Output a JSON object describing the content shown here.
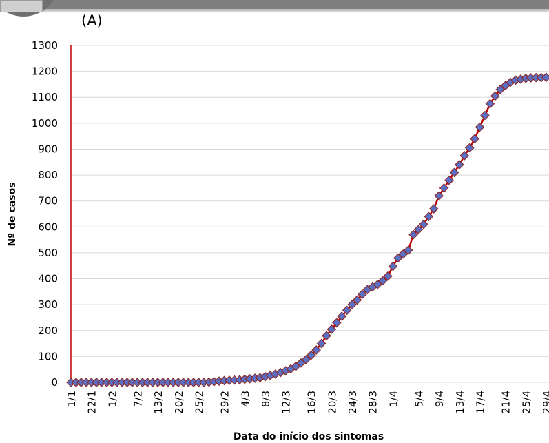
{
  "panel_label": "(A)",
  "chart_data": {
    "type": "line",
    "title": "",
    "xlabel": "Data do início dos sintomas",
    "ylabel": "Nº de casos",
    "ylim": [
      0,
      1300
    ],
    "yticks": [
      0,
      100,
      200,
      300,
      400,
      500,
      600,
      700,
      800,
      900,
      1000,
      1100,
      1200,
      1300
    ],
    "xticks": [
      "1/1",
      "22/1",
      "1/2",
      "7/2",
      "13/2",
      "20/2",
      "25/2",
      "29/2",
      "4/3",
      "8/3",
      "12/3",
      "16/3",
      "20/3",
      "24/3",
      "28/3",
      "1/4",
      "5/4",
      "9/4",
      "13/4",
      "17/4",
      "21/4",
      "25/4",
      "29/4"
    ],
    "grid": true,
    "colors": {
      "line": "#c00000",
      "marker_fill": "#5b6fc4",
      "marker_stroke": "#8b2a2a",
      "grid": "#d9d9d9",
      "y_axis": "#c00000"
    },
    "series": [
      {
        "values": [
          0,
          0,
          0,
          0,
          0,
          0,
          0,
          0,
          0,
          0,
          0,
          0,
          0,
          0,
          0,
          0,
          0,
          0,
          0,
          0,
          0,
          0,
          0,
          0,
          0,
          0,
          0,
          1,
          3,
          5,
          7,
          8,
          9,
          10,
          12,
          14,
          16,
          18,
          22,
          27,
          32,
          38,
          45,
          52,
          62,
          75,
          88,
          105,
          125,
          150,
          180,
          205,
          230,
          255,
          278,
          300,
          318,
          340,
          358,
          368,
          378,
          392,
          410,
          448,
          480,
          495,
          510,
          570,
          590,
          610,
          640,
          670,
          720,
          750,
          780,
          810,
          840,
          875,
          905,
          940,
          985,
          1030,
          1075,
          1105,
          1130,
          1145,
          1158,
          1166,
          1170,
          1173,
          1175,
          1176,
          1176,
          1177
        ]
      }
    ]
  }
}
